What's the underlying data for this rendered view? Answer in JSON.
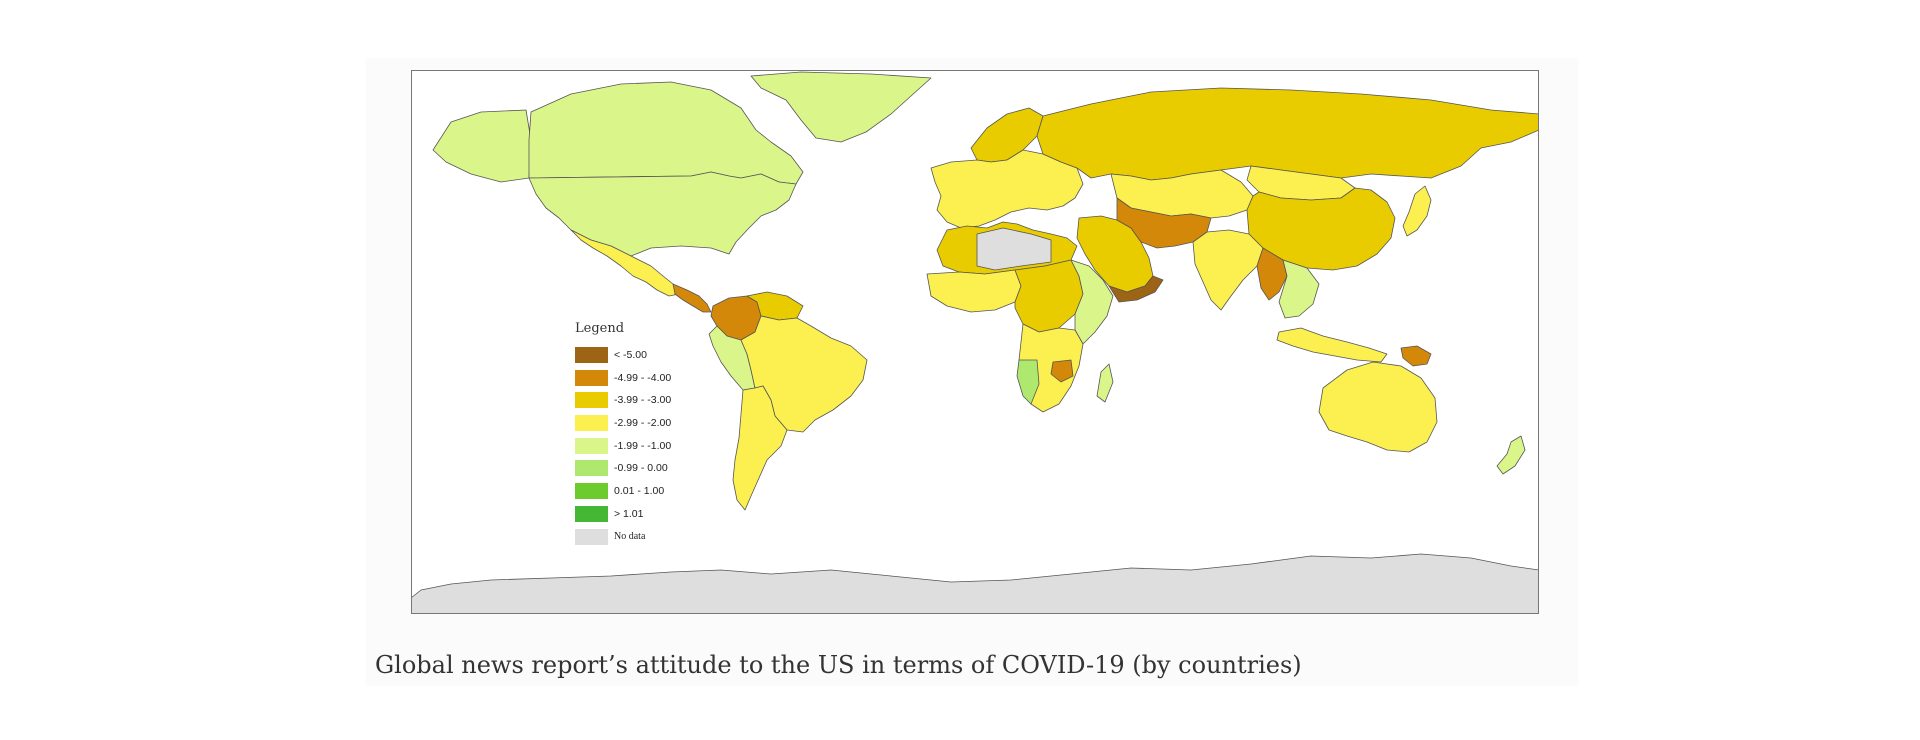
{
  "figure": {
    "caption": "Global news report’s attitude to the US in terms of COVID-19 (by countries)"
  },
  "legend": {
    "title": "Legend",
    "items": [
      {
        "label": "< -5.00",
        "color": "#9c6414"
      },
      {
        "label": "-4.99 - -4.00",
        "color": "#d4880a"
      },
      {
        "label": "-3.99 - -3.00",
        "color": "#e8cc00"
      },
      {
        "label": "-2.99 - -2.00",
        "color": "#fcef50"
      },
      {
        "label": "-1.99 - -1.00",
        "color": "#daf58a"
      },
      {
        "label": "-0.99 - 0.00",
        "color": "#aee86e"
      },
      {
        "label": "0.01 - 1.00",
        "color": "#6ccc2e"
      },
      {
        "label": "> 1.01",
        "color": "#44b834"
      },
      {
        "label": "No data",
        "color": "#dedede"
      }
    ]
  },
  "map": {
    "ocean_color": "#ffffff",
    "border_color": "#555555",
    "regions": [
      {
        "name": "greenland",
        "color": "#daf58a"
      },
      {
        "name": "canada",
        "color": "#daf58a"
      },
      {
        "name": "alaska",
        "color": "#daf58a"
      },
      {
        "name": "usa",
        "color": "#daf58a"
      },
      {
        "name": "mexico",
        "color": "#fcef50"
      },
      {
        "name": "central-america",
        "color": "#d4880a"
      },
      {
        "name": "colombia",
        "color": "#d4880a"
      },
      {
        "name": "venezuela",
        "color": "#e8cc00"
      },
      {
        "name": "peru",
        "color": "#daf58a"
      },
      {
        "name": "brazil",
        "color": "#fcef50"
      },
      {
        "name": "southern-cone",
        "color": "#fcef50"
      },
      {
        "name": "europe",
        "color": "#fcef50"
      },
      {
        "name": "scandinavia",
        "color": "#e8cc00"
      },
      {
        "name": "russia",
        "color": "#e8cc00"
      },
      {
        "name": "north-africa",
        "color": "#e8cc00"
      },
      {
        "name": "algeria-libya",
        "color": "#dedede"
      },
      {
        "name": "west-africa",
        "color": "#fcef50"
      },
      {
        "name": "central-africa",
        "color": "#e8cc00"
      },
      {
        "name": "east-africa",
        "color": "#daf58a"
      },
      {
        "name": "southern-africa",
        "color": "#fcef50"
      },
      {
        "name": "namibia",
        "color": "#aee86e"
      },
      {
        "name": "zimbabwe",
        "color": "#d4880a"
      },
      {
        "name": "madagascar",
        "color": "#daf58a"
      },
      {
        "name": "middle-east",
        "color": "#e8cc00"
      },
      {
        "name": "iran-afghanistan",
        "color": "#d4880a"
      },
      {
        "name": "yemen",
        "color": "#9c6414"
      },
      {
        "name": "central-asia",
        "color": "#fcef50"
      },
      {
        "name": "china",
        "color": "#e8cc00"
      },
      {
        "name": "mongolia",
        "color": "#fcef50"
      },
      {
        "name": "india",
        "color": "#fcef50"
      },
      {
        "name": "myanmar",
        "color": "#d4880a"
      },
      {
        "name": "southeast-asia",
        "color": "#daf58a"
      },
      {
        "name": "indonesia",
        "color": "#fcef50"
      },
      {
        "name": "papua",
        "color": "#d4880a"
      },
      {
        "name": "japan",
        "color": "#fcef50"
      },
      {
        "name": "australia",
        "color": "#fcef50"
      },
      {
        "name": "new-zealand",
        "color": "#daf58a"
      },
      {
        "name": "antarctica",
        "color": "#dedede"
      }
    ]
  }
}
